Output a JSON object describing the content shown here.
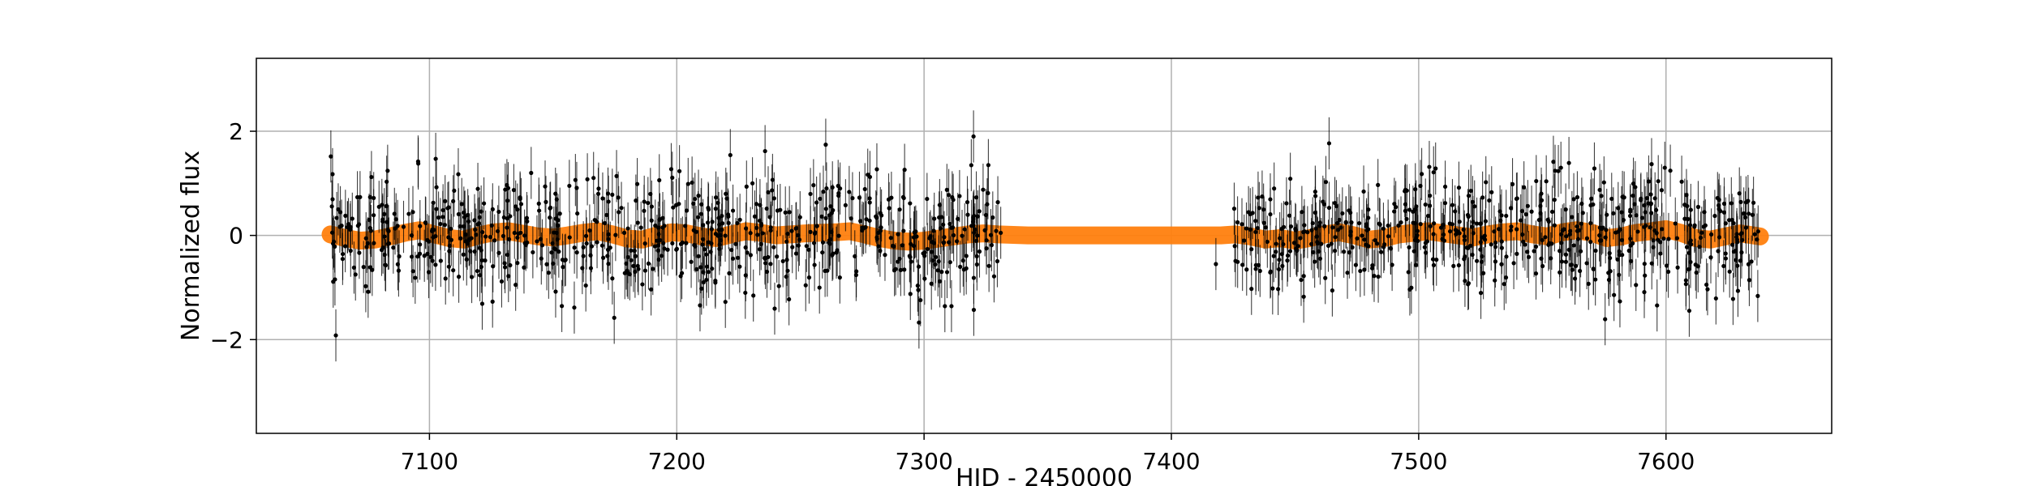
{
  "chart_data": {
    "type": "scatter",
    "title": "",
    "xlabel": "HJD - 2450000",
    "ylabel": "Normalized flux",
    "xlim": [
      7030,
      7667
    ],
    "ylim": [
      -3.8,
      3.4
    ],
    "grid": true,
    "x_ticks": [
      7100,
      7200,
      7300,
      7400,
      7500,
      7600
    ],
    "x_tick_labels": [
      "7100",
      "7200",
      "7300",
      "7400",
      "7500",
      "7600"
    ],
    "y_ticks": [
      2,
      0,
      -2
    ],
    "y_tick_labels": [
      "2",
      "0",
      "−2"
    ],
    "series": [
      {
        "kind": "model-band",
        "color": "#ff7f0e",
        "x": [
          7060,
          7066,
          7072,
          7078,
          7084,
          7090,
          7096,
          7102,
          7108,
          7114,
          7120,
          7126,
          7132,
          7138,
          7144,
          7150,
          7156,
          7162,
          7168,
          7174,
          7180,
          7186,
          7192,
          7198,
          7204,
          7210,
          7216,
          7222,
          7228,
          7234,
          7240,
          7246,
          7252,
          7258,
          7264,
          7270,
          7276,
          7282,
          7288,
          7294,
          7300,
          7306,
          7312,
          7318,
          7324,
          7330,
          7336,
          7342,
          7350,
          7360,
          7370,
          7380,
          7390,
          7400,
          7410,
          7420,
          7426,
          7432,
          7438,
          7444,
          7450,
          7456,
          7462,
          7468,
          7474,
          7480,
          7486,
          7492,
          7498,
          7504,
          7510,
          7516,
          7522,
          7528,
          7534,
          7540,
          7546,
          7552,
          7558,
          7564,
          7570,
          7576,
          7582,
          7588,
          7594,
          7600,
          7606,
          7612,
          7618,
          7624,
          7630,
          7638
        ],
        "y": [
          0.02,
          -0.05,
          -0.1,
          -0.08,
          -0.02,
          0.05,
          0.1,
          0.02,
          -0.05,
          -0.08,
          0.0,
          0.06,
          0.08,
          0.03,
          -0.02,
          -0.04,
          0.0,
          0.05,
          0.08,
          0.02,
          -0.06,
          -0.08,
          0.0,
          0.06,
          0.04,
          -0.02,
          -0.05,
          0.02,
          0.08,
          0.05,
          0.0,
          0.02,
          0.04,
          0.05,
          0.06,
          0.08,
          0.02,
          -0.05,
          -0.1,
          -0.12,
          -0.1,
          -0.06,
          -0.02,
          0.02,
          0.04,
          0.02,
          0.01,
          0.0,
          0.0,
          0.0,
          0.0,
          0.0,
          0.0,
          0.0,
          0.0,
          0.0,
          0.02,
          -0.02,
          -0.08,
          -0.05,
          -0.1,
          -0.05,
          0.02,
          0.06,
          0.0,
          -0.08,
          -0.05,
          0.02,
          0.05,
          0.08,
          0.04,
          0.0,
          -0.04,
          0.02,
          0.06,
          0.08,
          0.02,
          -0.02,
          0.06,
          0.1,
          0.05,
          -0.05,
          -0.02,
          0.05,
          0.08,
          0.12,
          0.05,
          -0.05,
          -0.08,
          -0.02,
          0.04,
          -0.02
        ]
      },
      {
        "kind": "measurements",
        "color": "#000000",
        "x_range_segments": [
          [
            7060,
            7250
          ],
          [
            7252,
            7330
          ],
          [
            7425,
            7638
          ]
        ],
        "gap_sparse_points": [
          [
            7320,
            1.9
          ],
          [
            7326,
            1.35
          ],
          [
            7331,
            0.05
          ],
          [
            7418,
            -0.55
          ]
        ],
        "scatter_sigma": 0.55,
        "errorbar_half_length": 0.5
      }
    ]
  }
}
